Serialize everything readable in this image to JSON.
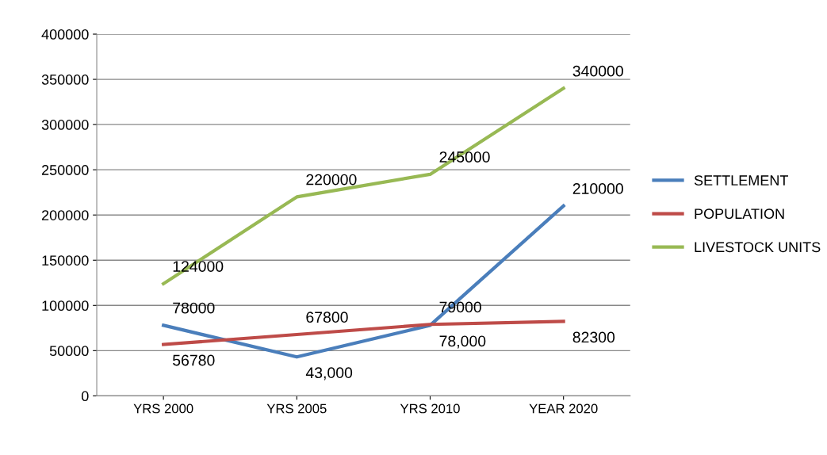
{
  "chart_data": {
    "type": "line",
    "categories": [
      "YRS 2000",
      "YRS 2005",
      "YRS 2010",
      "YEAR 2020"
    ],
    "series": [
      {
        "name": "SETTLEMENT",
        "color": "#4a7ebb",
        "values": [
          78000,
          43000,
          78000,
          210000
        ],
        "value_labels": [
          "78000",
          "43,000",
          "78,000",
          "210000"
        ]
      },
      {
        "name": "POPULATION",
        "color": "#be4b48",
        "values": [
          56780,
          67800,
          79000,
          82300
        ],
        "value_labels": [
          "56780",
          "67800",
          "79000",
          "82300"
        ]
      },
      {
        "name": "LIVESTOCK UNITS",
        "color": "#98b954",
        "values": [
          124000,
          220000,
          245000,
          340000
        ],
        "value_labels": [
          "124000",
          "220000",
          "245000",
          "340000"
        ]
      }
    ],
    "ylim": [
      0,
      400000
    ],
    "yticks": [
      0,
      50000,
      100000,
      150000,
      200000,
      250000,
      300000,
      350000,
      400000
    ],
    "grid": "y",
    "legend": "right",
    "marker": "none"
  }
}
